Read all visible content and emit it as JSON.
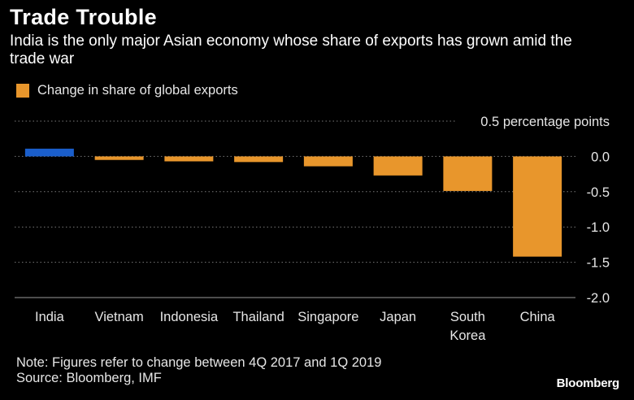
{
  "title": "Trade Trouble",
  "subtitle": "India is the only major Asian economy whose share of exports has grown amid the trade war",
  "legend": {
    "label": "Change in share of global exports",
    "color": "#e8962c"
  },
  "note": "Note: Figures refer to change between 4Q 2017 and 1Q 2019",
  "source": "Source: Bloomberg, IMF",
  "brand": "Bloomberg",
  "chart_data": {
    "type": "bar",
    "categories": [
      "India",
      "Vietnam",
      "Indonesia",
      "Thailand",
      "Singapore",
      "Japan",
      "South Korea",
      "China"
    ],
    "category_lines": [
      [
        "India"
      ],
      [
        "Vietnam"
      ],
      [
        "Indonesia"
      ],
      [
        "Thailand"
      ],
      [
        "Singapore"
      ],
      [
        "Japan"
      ],
      [
        "South",
        "Korea"
      ],
      [
        "China"
      ]
    ],
    "series": [
      {
        "name": "Change in share of global exports",
        "values": [
          0.11,
          -0.05,
          -0.07,
          -0.08,
          -0.14,
          -0.27,
          -0.49,
          -1.42
        ]
      }
    ],
    "bar_colors": [
      "#1a5ecb",
      "#e8962c",
      "#e8962c",
      "#e8962c",
      "#e8962c",
      "#e8962c",
      "#e8962c",
      "#e8962c"
    ],
    "ylim": [
      -2.0,
      0.5
    ],
    "yticks": [
      0.5,
      0.0,
      -0.5,
      -1.0,
      -1.5,
      -2.0
    ],
    "ytick_labels": [
      "0.5 percentage points",
      "0.0",
      "-0.5",
      "-1.0",
      "-1.5",
      "-2.0"
    ],
    "grid": true,
    "legend_position": "top-left"
  }
}
